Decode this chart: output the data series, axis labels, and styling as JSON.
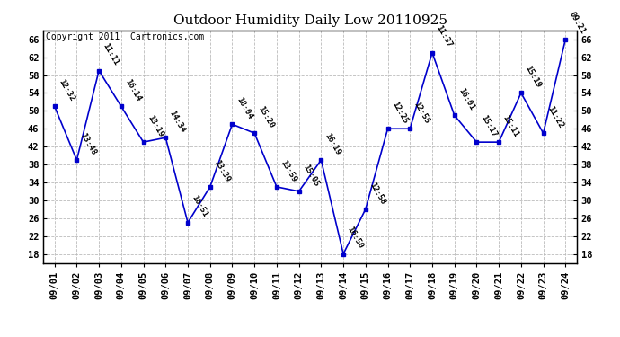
{
  "title": "Outdoor Humidity Daily Low 20110925",
  "copyright": "Copyright 2011  Cartronics.com",
  "x_labels": [
    "09/01",
    "09/02",
    "09/03",
    "09/04",
    "09/05",
    "09/06",
    "09/07",
    "09/08",
    "09/09",
    "09/10",
    "09/11",
    "09/12",
    "09/13",
    "09/14",
    "09/15",
    "09/16",
    "09/17",
    "09/18",
    "09/19",
    "09/20",
    "09/21",
    "09/22",
    "09/23",
    "09/24"
  ],
  "y_values": [
    51,
    39,
    59,
    51,
    43,
    44,
    25,
    33,
    47,
    45,
    33,
    32,
    39,
    18,
    28,
    46,
    46,
    63,
    49,
    43,
    43,
    54,
    45,
    66
  ],
  "point_labels": [
    "12:32",
    "13:48",
    "11:11",
    "16:14",
    "13:19",
    "14:34",
    "16:51",
    "13:39",
    "18:04",
    "15:20",
    "13:59",
    "15:05",
    "16:19",
    "16:50",
    "12:58",
    "12:25",
    "12:55",
    "11:37",
    "16:01",
    "15:17",
    "15:11",
    "15:19",
    "11:22",
    "09:21"
  ],
  "line_color": "#0000cc",
  "marker_color": "#0000cc",
  "background_color": "#ffffff",
  "plot_bg_color": "#ffffff",
  "grid_color": "#bbbbbb",
  "ylim": [
    16,
    68
  ],
  "yticks": [
    18,
    22,
    26,
    30,
    34,
    38,
    42,
    46,
    50,
    54,
    58,
    62,
    66
  ],
  "title_fontsize": 11,
  "label_fontsize": 6.5,
  "copyright_fontsize": 7,
  "tick_fontsize": 7.5
}
